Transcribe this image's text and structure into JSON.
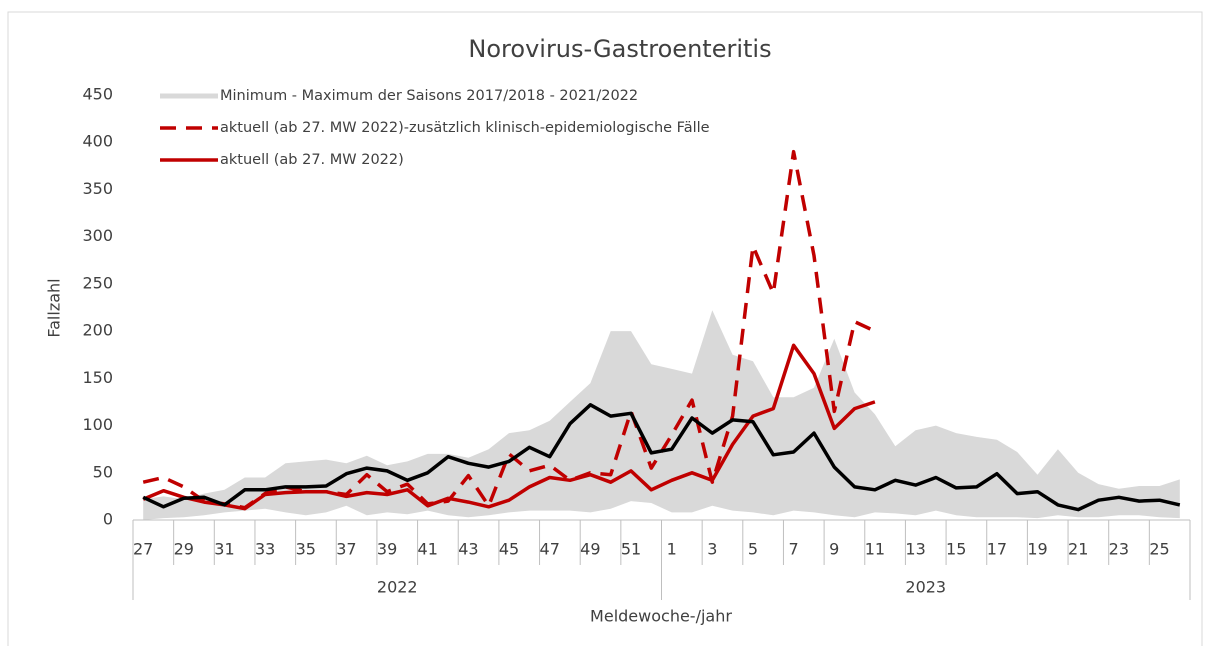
{
  "chart_data": {
    "type": "line",
    "title": "Norovirus-Gastroenteritis",
    "x_label": "Meldewoche-/jahr",
    "y_label": "Fallzahl",
    "categories": [
      "27",
      null,
      "29",
      null,
      "31",
      null,
      "33",
      null,
      "35",
      null,
      "37",
      null,
      "39",
      null,
      "41",
      null,
      "43",
      null,
      "45",
      null,
      "47",
      null,
      "49",
      null,
      "51",
      null,
      "1",
      null,
      "3",
      null,
      "5",
      null,
      "7",
      null,
      "9",
      null,
      "11",
      null,
      "13",
      null,
      "15",
      null,
      "17",
      null,
      "19",
      null,
      "21",
      null,
      "23",
      null,
      "25",
      null
    ],
    "groups": [
      "2022",
      "2023"
    ],
    "ylim": [
      0,
      450
    ],
    "yticks": [
      0,
      50,
      100,
      150,
      200,
      250,
      300,
      350,
      400,
      450
    ],
    "series": [
      {
        "name": "Minimum - Maximum der Saisons 2017/2018 - 2021/2022",
        "type": "band",
        "color": "#d9d9d9",
        "max": [
          22,
          25,
          22,
          28,
          32,
          45,
          45,
          60,
          62,
          64,
          60,
          68,
          58,
          62,
          70,
          70,
          66,
          75,
          92,
          95,
          105,
          125,
          145,
          200,
          200,
          165,
          160,
          155,
          222,
          175,
          168,
          130,
          130,
          140,
          192,
          135,
          112,
          78,
          95,
          100,
          92,
          88,
          85,
          72,
          48,
          75,
          50,
          38,
          33,
          36,
          36,
          43
        ],
        "min": [
          0,
          2,
          3,
          5,
          8,
          10,
          12,
          8,
          5,
          8,
          15,
          5,
          8,
          6,
          10,
          5,
          3,
          5,
          8,
          10,
          10,
          10,
          8,
          12,
          20,
          18,
          8,
          8,
          15,
          10,
          8,
          5,
          10,
          8,
          5,
          3,
          8,
          7,
          5,
          10,
          5,
          3,
          3,
          3,
          2,
          5,
          3,
          3,
          5,
          5,
          3,
          2
        ]
      },
      {
        "name": "aktuell (ab 27. MW 2022)-zusätzlich klinisch-epidemiologische Fälle",
        "color": "#c00000",
        "dashed": true,
        "values": [
          40,
          45,
          35,
          20,
          17,
          13,
          28,
          35,
          30,
          30,
          27,
          48,
          30,
          38,
          17,
          20,
          47,
          15,
          70,
          52,
          58,
          42,
          50,
          48,
          115,
          55,
          90,
          127,
          40,
          110,
          290,
          240,
          390,
          280,
          115,
          210,
          200,
          null,
          null,
          null,
          null,
          null,
          null,
          null,
          null,
          null,
          null,
          null,
          null,
          null,
          null,
          null
        ]
      },
      {
        "name": "aktuell (ab 27. MW 2022)",
        "color": "#c00000",
        "values": [
          22,
          31,
          24,
          19,
          16,
          12,
          27,
          29,
          30,
          30,
          25,
          29,
          27,
          32,
          15,
          23,
          19,
          14,
          21,
          35,
          45,
          42,
          48,
          40,
          52,
          32,
          42,
          50,
          42,
          80,
          110,
          118,
          185,
          155,
          97,
          118,
          125,
          null,
          null,
          null,
          null,
          null,
          null,
          null,
          null,
          null,
          null,
          null,
          null,
          null,
          null,
          null
        ]
      },
      {
        "color": "#000000",
        "values": [
          24,
          14,
          23,
          24,
          16,
          32,
          32,
          35,
          35,
          36,
          49,
          55,
          52,
          42,
          50,
          67,
          60,
          56,
          62,
          77,
          67,
          102,
          122,
          110,
          113,
          71,
          75,
          108,
          92,
          106,
          104,
          69,
          72,
          92,
          56,
          35,
          32,
          42,
          37,
          45,
          34,
          35,
          49,
          28,
          30,
          16,
          11,
          21,
          24,
          20,
          21,
          16
        ]
      }
    ]
  }
}
